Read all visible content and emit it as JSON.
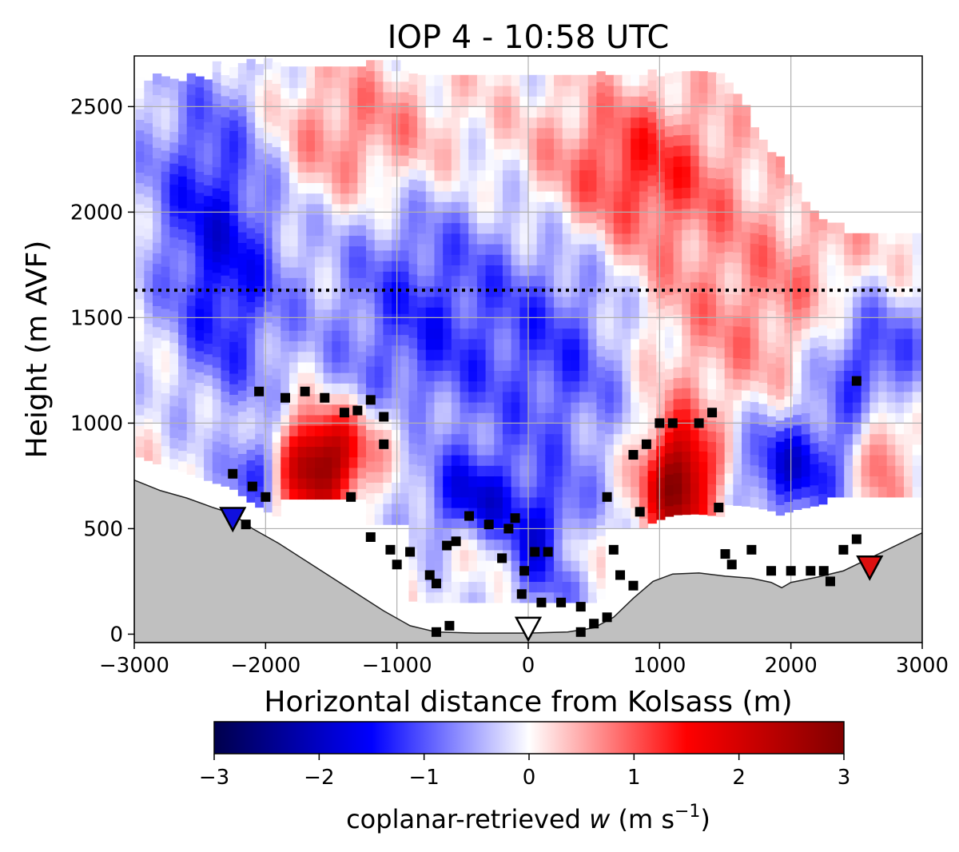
{
  "chart_data": {
    "type": "heatmap",
    "title": "IOP 4 - 10:58 UTC",
    "xlabel": "Horizontal distance from Kolsass (m)",
    "ylabel": "Height (m AVF)",
    "xlim": [
      -3000,
      3000
    ],
    "ylim": [
      -40,
      2740
    ],
    "xticks": [
      -3000,
      -2000,
      -1000,
      0,
      1000,
      2000,
      3000
    ],
    "xtick_labels": [
      "−3000",
      "−2000",
      "−1000",
      "0",
      "1000",
      "2000",
      "3000"
    ],
    "yticks": [
      0,
      500,
      1000,
      1500,
      2000,
      2500
    ],
    "ytick_labels": [
      "0",
      "500",
      "1000",
      "1500",
      "2000",
      "2500"
    ],
    "grid": true,
    "reference_line_height": 1630,
    "colorbar": {
      "label_prefix": "coplanar-retrieved ",
      "label_var": "w",
      "label_unit_open": " (m s",
      "label_exp": "−1",
      "label_unit_close": ")",
      "range": [
        -3,
        3
      ],
      "ticks": [
        -3,
        -2,
        -1,
        0,
        1,
        2,
        3
      ],
      "tick_labels": [
        "−3",
        "−2",
        "−1",
        "0",
        "1",
        "2",
        "3"
      ],
      "colormap": "seismic"
    },
    "terrain": [
      [
        -3000,
        730
      ],
      [
        -2800,
        680
      ],
      [
        -2600,
        645
      ],
      [
        -2400,
        600
      ],
      [
        -2250,
        570
      ],
      [
        -2100,
        500
      ],
      [
        -1900,
        430
      ],
      [
        -1700,
        350
      ],
      [
        -1500,
        270
      ],
      [
        -1300,
        190
      ],
      [
        -1100,
        110
      ],
      [
        -900,
        40
      ],
      [
        -700,
        10
      ],
      [
        -400,
        5
      ],
      [
        0,
        5
      ],
      [
        300,
        10
      ],
      [
        500,
        30
      ],
      [
        650,
        80
      ],
      [
        800,
        170
      ],
      [
        950,
        250
      ],
      [
        1100,
        285
      ],
      [
        1300,
        290
      ],
      [
        1500,
        275
      ],
      [
        1700,
        265
      ],
      [
        1850,
        245
      ],
      [
        1930,
        220
      ],
      [
        2000,
        245
      ],
      [
        2200,
        270
      ],
      [
        2400,
        300
      ],
      [
        2600,
        360
      ],
      [
        2800,
        420
      ],
      [
        3000,
        480
      ]
    ],
    "sites": [
      {
        "x": -2250,
        "y": 545,
        "color": "#1010dd"
      },
      {
        "x": 0,
        "y": 25,
        "color": "#ffffff"
      },
      {
        "x": 2600,
        "y": 315,
        "color": "#dd1010"
      }
    ],
    "features": [
      {
        "x": -1600,
        "y": 800,
        "w": 3.0,
        "sx": 230,
        "sy": 160
      },
      {
        "x": -1200,
        "y": 960,
        "w": 0.6,
        "sx": 350,
        "sy": 130
      },
      {
        "x": 1150,
        "y": 720,
        "w": 3.0,
        "sx": 190,
        "sy": 200
      },
      {
        "x": 2700,
        "y": 880,
        "w": 1.4,
        "sx": 120,
        "sy": 180
      },
      {
        "x": 300,
        "y": 380,
        "w": 1.0,
        "sx": 130,
        "sy": 100
      },
      {
        "x": -400,
        "y": 420,
        "w": 0.8,
        "sx": 200,
        "sy": 120
      },
      {
        "x": -1300,
        "y": 2350,
        "w": 0.9,
        "sx": 600,
        "sy": 250
      },
      {
        "x": 800,
        "y": 2200,
        "w": 1.3,
        "sx": 500,
        "sy": 260
      },
      {
        "x": 1500,
        "y": 1500,
        "w": 0.6,
        "sx": 600,
        "sy": 380
      },
      {
        "x": 2300,
        "y": 1700,
        "w": 0.4,
        "sx": 400,
        "sy": 300
      },
      {
        "x": -2400,
        "y": 2150,
        "w": -1.3,
        "sx": 380,
        "sy": 400
      },
      {
        "x": -2300,
        "y": 1500,
        "w": -1.0,
        "sx": 300,
        "sy": 350
      },
      {
        "x": -800,
        "y": 1500,
        "w": -1.2,
        "sx": 550,
        "sy": 500
      },
      {
        "x": -400,
        "y": 600,
        "w": -1.6,
        "sx": 250,
        "sy": 180
      },
      {
        "x": 150,
        "y": 400,
        "w": -1.6,
        "sx": 200,
        "sy": 200
      },
      {
        "x": 300,
        "y": 1300,
        "w": -1.0,
        "sx": 400,
        "sy": 450
      },
      {
        "x": 2000,
        "y": 800,
        "w": -1.7,
        "sx": 300,
        "sy": 180
      },
      {
        "x": 2600,
        "y": 1300,
        "w": -1.5,
        "sx": 300,
        "sy": 250
      },
      {
        "x": -2050,
        "y": 780,
        "w": -1.5,
        "sx": 150,
        "sy": 130
      }
    ],
    "black_markers": [
      [
        -2050,
        1150
      ],
      [
        -1850,
        1120
      ],
      [
        -1700,
        1150
      ],
      [
        -1550,
        1120
      ],
      [
        -1400,
        1050
      ],
      [
        -1300,
        1060
      ],
      [
        -1100,
        900
      ],
      [
        -2100,
        700
      ],
      [
        -2000,
        650
      ],
      [
        -1350,
        650
      ],
      [
        -1100,
        1030
      ],
      [
        -1200,
        1110
      ],
      [
        -2250,
        760
      ],
      [
        -2150,
        520
      ],
      [
        -1200,
        460
      ],
      [
        -1050,
        400
      ],
      [
        -1000,
        330
      ],
      [
        -900,
        390
      ],
      [
        -750,
        280
      ],
      [
        -700,
        240
      ],
      [
        -620,
        420
      ],
      [
        -550,
        440
      ],
      [
        -450,
        560
      ],
      [
        -300,
        520
      ],
      [
        -150,
        500
      ],
      [
        -100,
        550
      ],
      [
        50,
        390
      ],
      [
        150,
        390
      ],
      [
        -200,
        360
      ],
      [
        -30,
        300
      ],
      [
        -50,
        190
      ],
      [
        100,
        150
      ],
      [
        250,
        150
      ],
      [
        400,
        130
      ],
      [
        -600,
        40
      ],
      [
        -700,
        10
      ],
      [
        400,
        10
      ],
      [
        500,
        50
      ],
      [
        600,
        80
      ],
      [
        700,
        280
      ],
      [
        800,
        230
      ],
      [
        650,
        400
      ],
      [
        600,
        650
      ],
      [
        800,
        850
      ],
      [
        900,
        900
      ],
      [
        1000,
        1000
      ],
      [
        1100,
        1000
      ],
      [
        1300,
        1000
      ],
      [
        1400,
        1050
      ],
      [
        1450,
        600
      ],
      [
        1500,
        380
      ],
      [
        1550,
        330
      ],
      [
        1700,
        400
      ],
      [
        1850,
        300
      ],
      [
        2000,
        300
      ],
      [
        2150,
        300
      ],
      [
        2250,
        300
      ],
      [
        2300,
        250
      ],
      [
        2400,
        400
      ],
      [
        2500,
        450
      ],
      [
        2500,
        1200
      ],
      [
        850,
        580
      ]
    ]
  }
}
